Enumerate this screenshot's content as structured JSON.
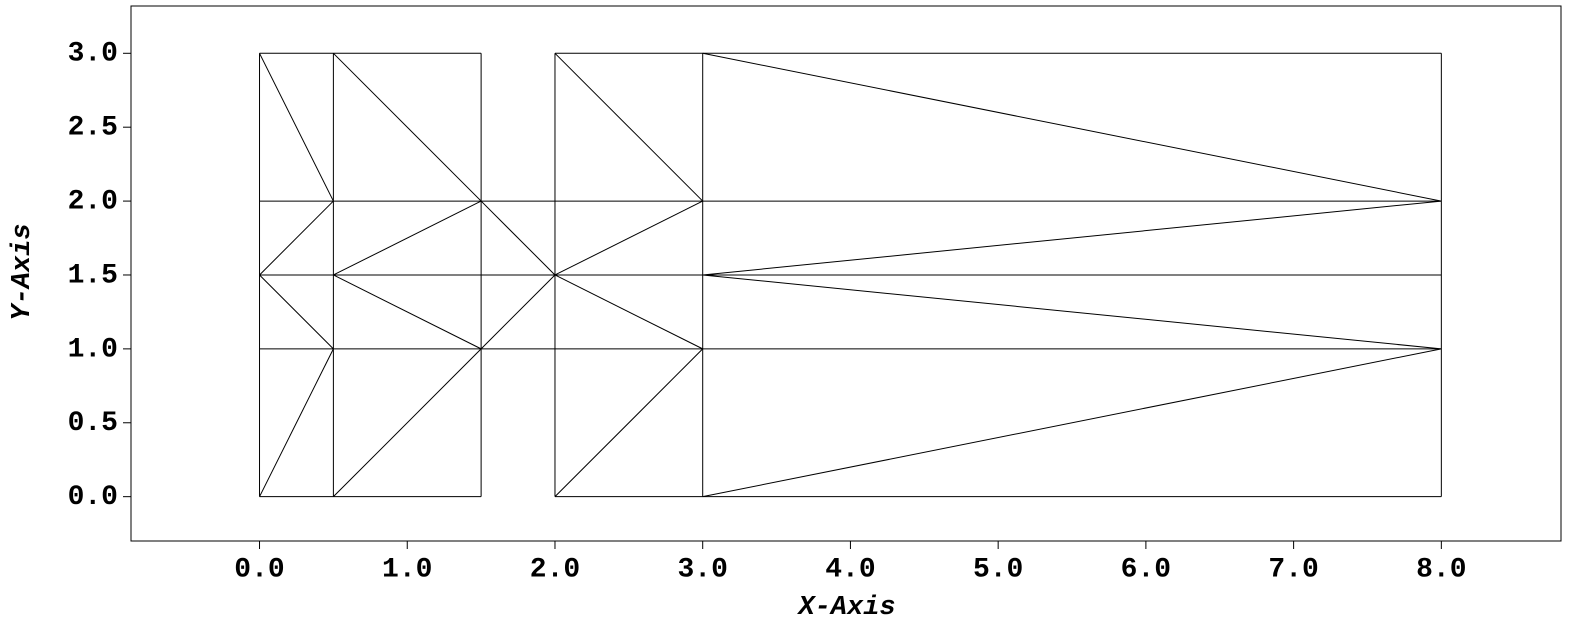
{
  "chart_data": {
    "type": "mesh",
    "x_label": "X-Axis",
    "y_label": "Y-Axis",
    "color": "#000000",
    "xlim": [
      -0.87,
      8.81
    ],
    "ylim": [
      -0.3,
      3.32
    ],
    "xticks": [
      {
        "value": 0,
        "label": "0.0"
      },
      {
        "value": 1,
        "label": "1.0"
      },
      {
        "value": 2,
        "label": "2.0"
      },
      {
        "value": 3,
        "label": "3.0"
      },
      {
        "value": 4,
        "label": "4.0"
      },
      {
        "value": 5,
        "label": "5.0"
      },
      {
        "value": 6,
        "label": "6.0"
      },
      {
        "value": 7,
        "label": "7.0"
      },
      {
        "value": 8,
        "label": "8.0"
      }
    ],
    "yticks": [
      {
        "value": 0,
        "label": "0.0"
      },
      0.5,
      {
        "value": 1,
        "label": "1.0"
      },
      1.5,
      {
        "value": 2,
        "label": "2.0"
      },
      2.5,
      {
        "value": 3,
        "label": "3.0"
      }
    ],
    "segments": [
      {
        "x": [
          0,
          0
        ],
        "y": [
          0,
          3
        ]
      },
      {
        "x": [
          0.5,
          0.5
        ],
        "y": [
          0,
          3
        ]
      },
      {
        "x": [
          1.5,
          1.5
        ],
        "y": [
          0,
          3
        ]
      },
      {
        "x": [
          0,
          1.5
        ],
        "y": [
          3,
          3
        ]
      },
      {
        "x": [
          0,
          1.5
        ],
        "y": [
          0,
          0
        ]
      },
      {
        "x": [
          2,
          2
        ],
        "y": [
          0,
          3
        ]
      },
      {
        "x": [
          3,
          3
        ],
        "y": [
          0,
          3
        ]
      },
      {
        "x": [
          8,
          8
        ],
        "y": [
          0,
          3
        ]
      },
      {
        "x": [
          2,
          8
        ],
        "y": [
          3,
          3
        ]
      },
      {
        "x": [
          2,
          8
        ],
        "y": [
          0,
          0
        ]
      },
      {
        "x": [
          0,
          8
        ],
        "y": [
          1,
          1
        ]
      },
      {
        "x": [
          0,
          8
        ],
        "y": [
          1.5,
          1.5
        ]
      },
      {
        "x": [
          0,
          8
        ],
        "y": [
          2,
          2
        ]
      },
      {
        "x": [
          0,
          0.5
        ],
        "y": [
          3,
          2
        ]
      },
      {
        "x": [
          0.5,
          1.5
        ],
        "y": [
          3,
          2
        ]
      },
      {
        "x": [
          0,
          0.5
        ],
        "y": [
          1.5,
          2
        ]
      },
      {
        "x": [
          0,
          0.5
        ],
        "y": [
          1.5,
          1
        ]
      },
      {
        "x": [
          0,
          0.5
        ],
        "y": [
          0,
          1
        ]
      },
      {
        "x": [
          0.5,
          1.5
        ],
        "y": [
          1.5,
          2
        ]
      },
      {
        "x": [
          0.5,
          1.5
        ],
        "y": [
          1.5,
          1
        ]
      },
      {
        "x": [
          0.5,
          1.5
        ],
        "y": [
          0,
          1
        ]
      },
      {
        "x": [
          1.5,
          2
        ],
        "y": [
          2,
          1.5
        ]
      },
      {
        "x": [
          1.5,
          2
        ],
        "y": [
          1,
          1.5
        ]
      },
      {
        "x": [
          2,
          3
        ],
        "y": [
          3,
          2
        ]
      },
      {
        "x": [
          2,
          3
        ],
        "y": [
          1.5,
          2
        ]
      },
      {
        "x": [
          2,
          3
        ],
        "y": [
          1.5,
          1
        ]
      },
      {
        "x": [
          2,
          3
        ],
        "y": [
          0,
          1
        ]
      },
      {
        "x": [
          3,
          8
        ],
        "y": [
          3,
          2
        ]
      },
      {
        "x": [
          3,
          8
        ],
        "y": [
          1.5,
          2
        ]
      },
      {
        "x": [
          3,
          8
        ],
        "y": [
          1.5,
          1
        ]
      },
      {
        "x": [
          3,
          8
        ],
        "y": [
          0,
          1
        ]
      }
    ]
  }
}
